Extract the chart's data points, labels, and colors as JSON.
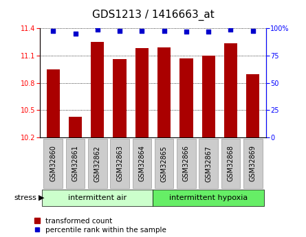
{
  "title": "GDS1213 / 1416663_at",
  "categories": [
    "GSM32860",
    "GSM32861",
    "GSM32862",
    "GSM32863",
    "GSM32864",
    "GSM32865",
    "GSM32866",
    "GSM32867",
    "GSM32868",
    "GSM32869"
  ],
  "bar_values": [
    10.95,
    10.43,
    11.25,
    11.06,
    11.18,
    11.19,
    11.07,
    11.1,
    11.24,
    10.9
  ],
  "percentile_values": [
    98,
    95,
    99,
    98,
    98,
    98,
    97,
    97,
    99,
    98
  ],
  "bar_color": "#aa0000",
  "dot_color": "#0000cc",
  "ylim_left": [
    10.2,
    11.4
  ],
  "ylim_right": [
    0,
    100
  ],
  "yticks_left": [
    10.2,
    10.5,
    10.8,
    11.1,
    11.4
  ],
  "yticks_right": [
    0,
    25,
    50,
    75,
    100
  ],
  "ytick_labels_right": [
    "0",
    "25",
    "50",
    "75",
    "100%"
  ],
  "group1_label": "intermittent air",
  "group2_label": "intermittent hypoxia",
  "group1_color": "#ccffcc",
  "group2_color": "#66ee66",
  "stress_label": "stress",
  "legend_bar_label": "transformed count",
  "legend_dot_label": "percentile rank within the sample",
  "bar_width": 0.6,
  "title_fontsize": 11,
  "tick_label_fontsize": 7,
  "group_label_fontsize": 8,
  "legend_fontsize": 7.5,
  "tick_box_color": "#cccccc",
  "tick_box_edge": "#999999"
}
